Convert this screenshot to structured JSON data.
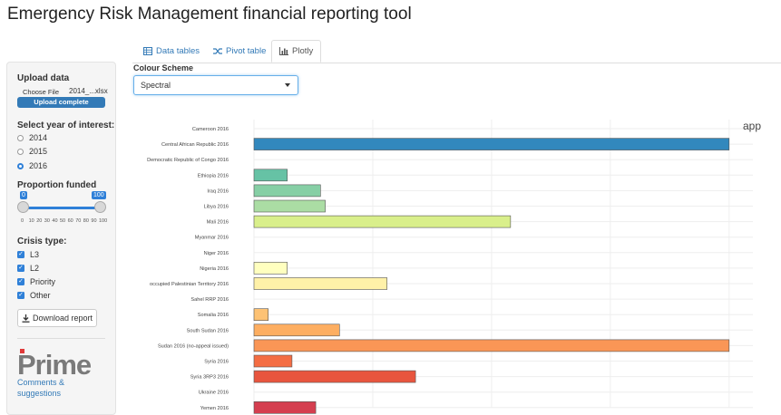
{
  "app_title": "Emergency Risk Management financial reporting tool",
  "tabs": [
    {
      "label": "Data tables",
      "icon": "table-icon"
    },
    {
      "label": "Pivot table",
      "icon": "shuffle-icon"
    },
    {
      "label": "Plotly",
      "icon": "bar-chart-icon"
    }
  ],
  "sidebar": {
    "upload_label": "Upload data",
    "choose_file": "Choose File",
    "file_name": "2014_...xlsx",
    "upload_status": "Upload complete",
    "year_label": "Select year of interest:",
    "years": [
      "2014",
      "2015",
      "2016"
    ],
    "selected_year": "2016",
    "proportion_label": "Proportion funded",
    "slider_min": "0",
    "slider_max": "100",
    "slider_ticks": [
      "0",
      "10",
      "20",
      "30",
      "40",
      "50",
      "60",
      "70",
      "80",
      "90",
      "100"
    ],
    "slider_range": [
      0,
      100
    ],
    "crisis_label": "Crisis type:",
    "crisis_types": [
      {
        "label": "L3",
        "checked": true
      },
      {
        "label": "L2",
        "checked": true
      },
      {
        "label": "Priority",
        "checked": true
      },
      {
        "label": "Other",
        "checked": true
      }
    ],
    "download_label": "Download report",
    "logo_text": "Prime",
    "links": [
      "Comments &",
      "suggestions"
    ]
  },
  "colour_scheme": {
    "label": "Colour Scheme",
    "value": "Spectral"
  },
  "plot_overlay_text": "app",
  "chart_data": {
    "type": "bar",
    "orientation": "horizontal",
    "categories": [
      "Cameroon 2016",
      "Central African Republic 2016",
      "Democratic Republic of Congo 2016",
      "Ethiopia 2016",
      "Iraq 2016",
      "Libya 2016",
      "Mali 2016",
      "Myanmar 2016",
      "Niger 2016",
      "Nigeria 2016",
      "occupied Palestinian Territory 2016",
      "Sahel RRP 2016",
      "Somalia  2016",
      "South Sudan 2016",
      "Sudan 2016 (no-appeal issued)",
      "Syria 2016",
      "Syria 3RP3 2016",
      "Ukraine 2016",
      "Yemen 2016"
    ],
    "values": [
      0,
      200,
      0,
      14,
      28,
      30,
      108,
      0,
      0,
      14,
      56,
      0,
      6,
      36,
      200,
      16,
      68,
      0,
      26
    ],
    "colors": [
      "#5e4fa2",
      "#3288bd",
      "#4fa3b7",
      "#66c2a5",
      "#86cfa5",
      "#abdda4",
      "#d9ef8b",
      "#e6f598",
      "#f6faaa",
      "#ffffbf",
      "#fff1a8",
      "#fee08b",
      "#fdc274",
      "#fdae61",
      "#fa9656",
      "#f46d43",
      "#e8553e",
      "#d53e4f",
      "#d53e4f"
    ],
    "xlim": [
      0,
      210
    ],
    "grid": true
  }
}
